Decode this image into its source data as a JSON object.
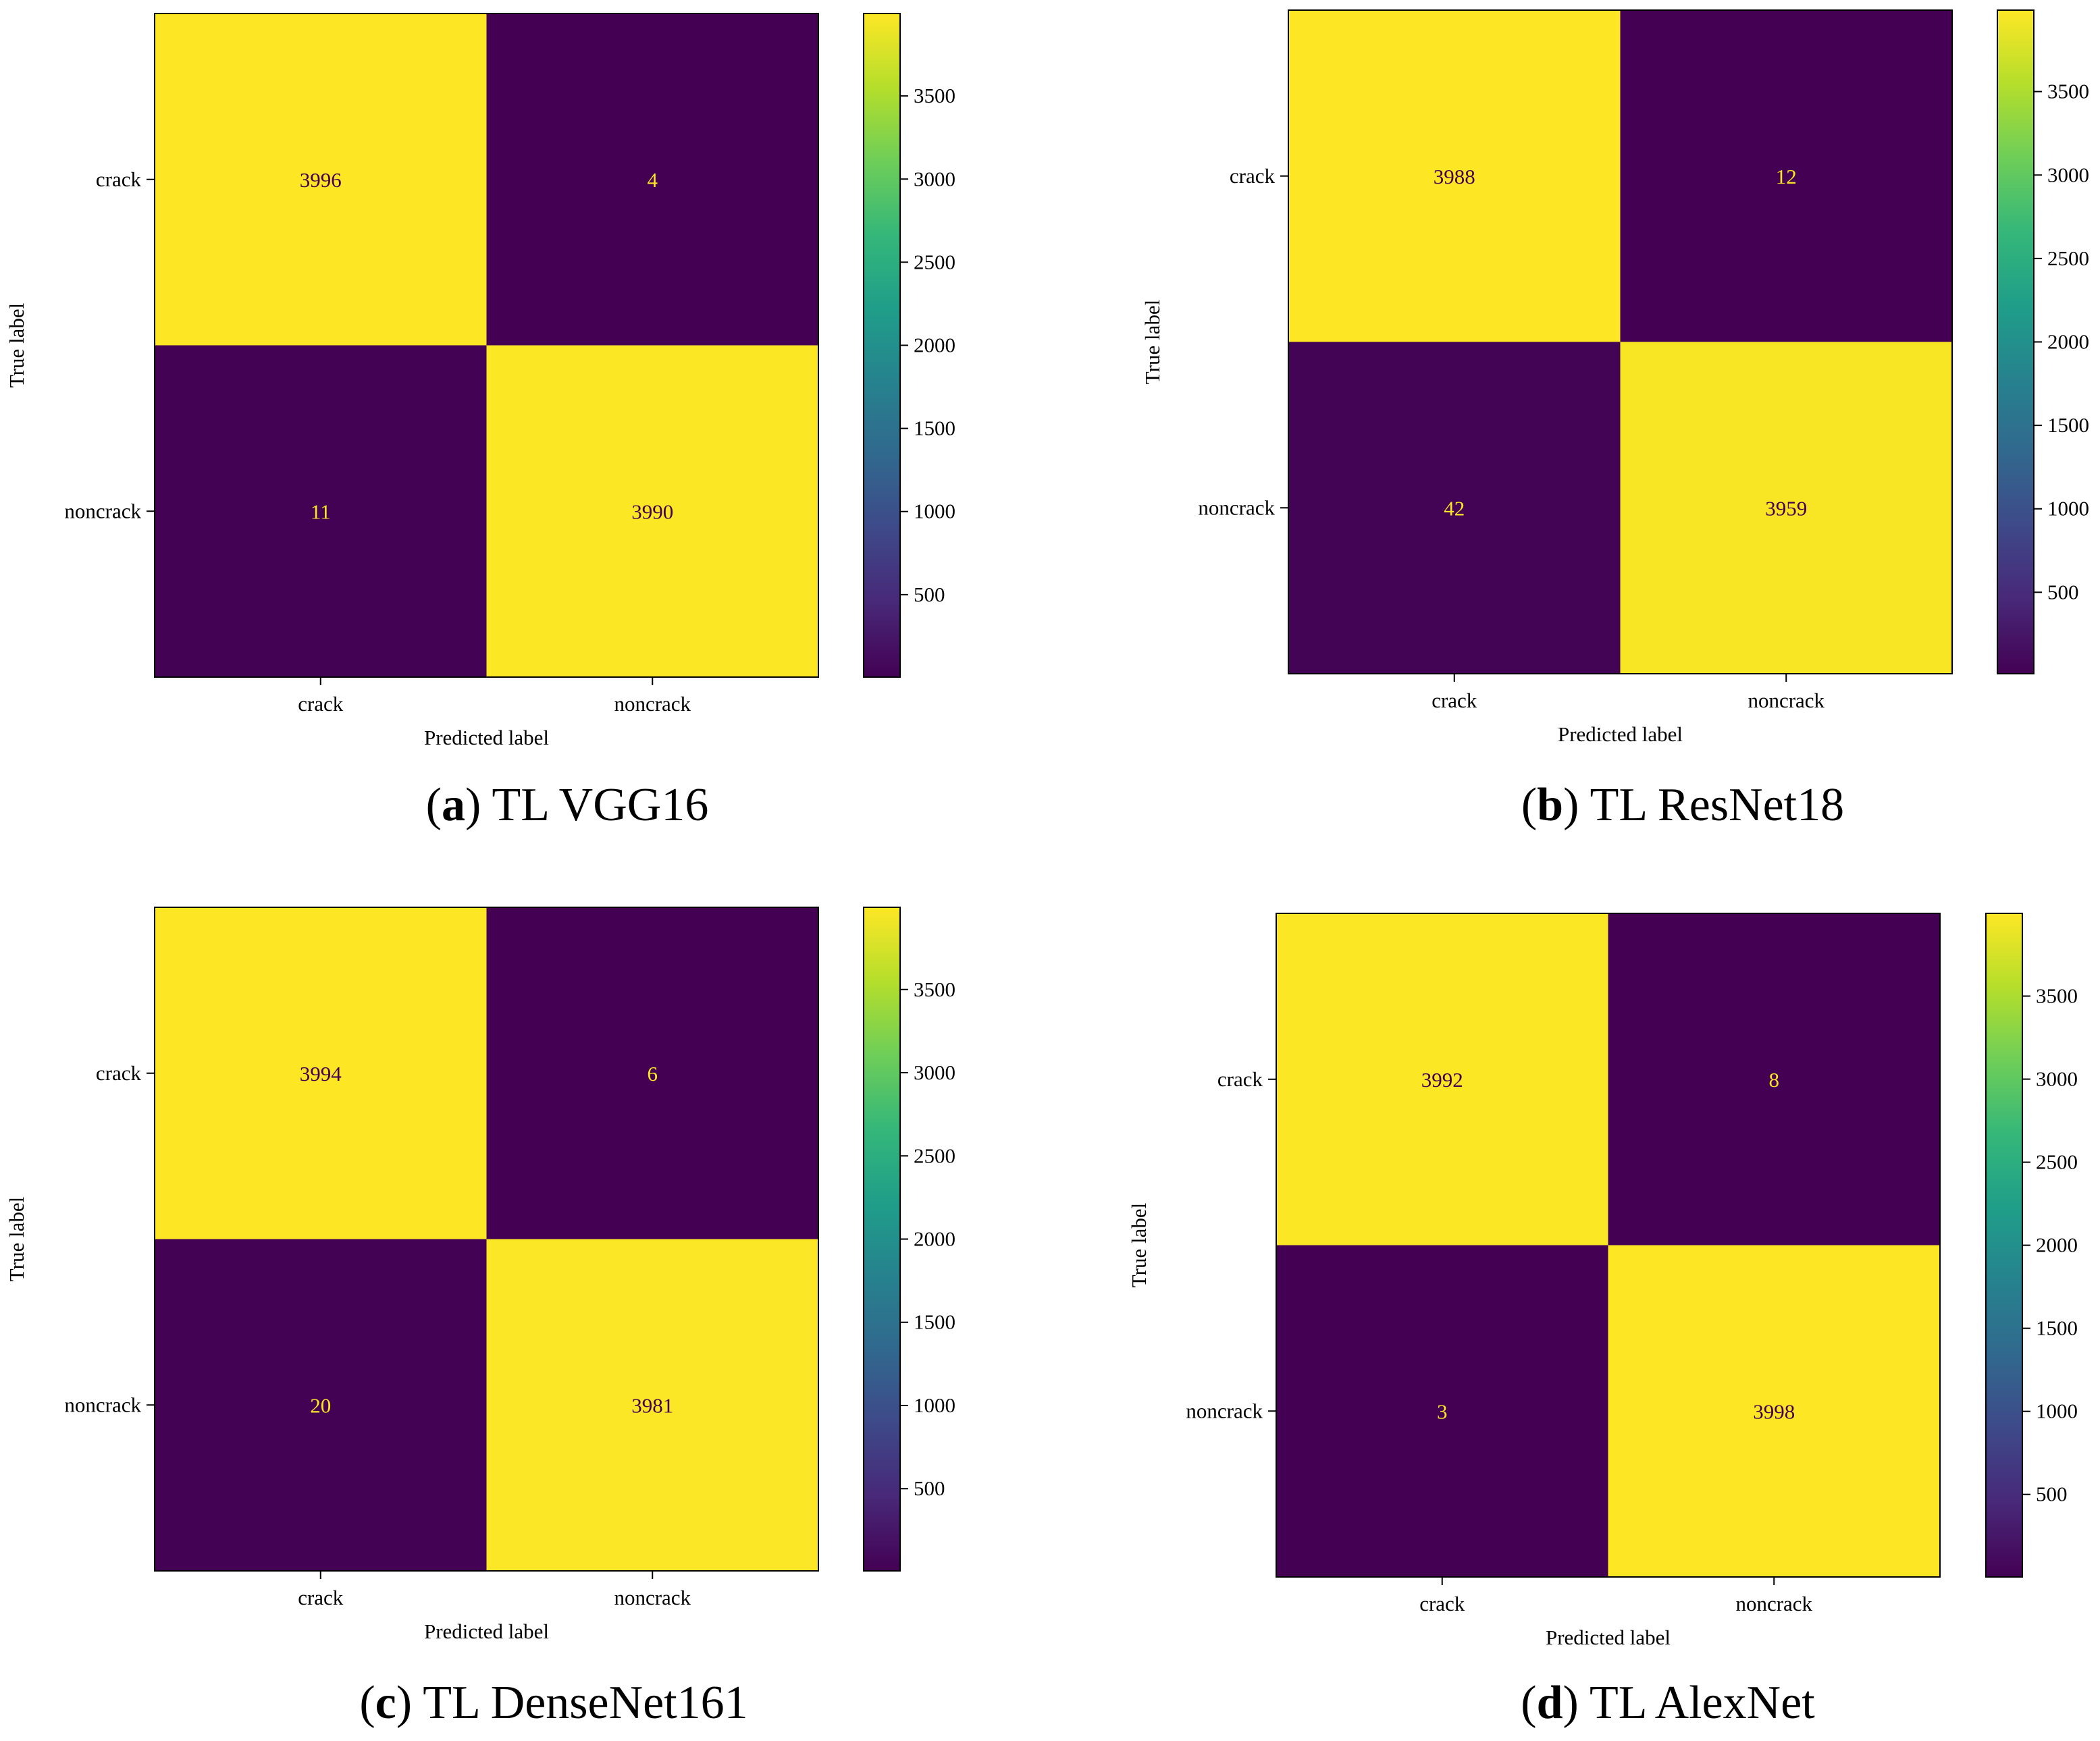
{
  "colormap": {
    "name": "viridis",
    "stops": [
      "#440154",
      "#482878",
      "#3e4989",
      "#31688e",
      "#26828e",
      "#1f9e89",
      "#35b779",
      "#6ece58",
      "#b5de2b",
      "#fde725"
    ],
    "high_text_color": "#440154",
    "low_text_color": "#fde725"
  },
  "chart_data": [
    {
      "type": "heatmap",
      "panel_letter": "a",
      "caption_open": "(",
      "caption_close": ")",
      "caption_text": " TL VGG16",
      "xlabel": "Predicted label",
      "ylabel": "True label",
      "x_categories": [
        "crack",
        "noncrack"
      ],
      "y_categories": [
        "crack",
        "noncrack"
      ],
      "values": [
        [
          3996,
          4
        ],
        [
          11,
          3990
        ]
      ],
      "colorbar_range": [
        4,
        3996
      ],
      "colorbar_ticks": [
        500,
        1000,
        1500,
        2000,
        2500,
        3000,
        3500
      ],
      "colorbar_tick_labels": [
        "500",
        "1000",
        "1500",
        "2000",
        "2500",
        "3000",
        "3500"
      ]
    },
    {
      "type": "heatmap",
      "panel_letter": "b",
      "caption_open": "(",
      "caption_close": ")",
      "caption_text": " TL ResNet18",
      "xlabel": "Predicted label",
      "ylabel": "True label",
      "x_categories": [
        "crack",
        "noncrack"
      ],
      "y_categories": [
        "crack",
        "noncrack"
      ],
      "values": [
        [
          3988,
          12
        ],
        [
          42,
          3959
        ]
      ],
      "colorbar_range": [
        12,
        3988
      ],
      "colorbar_ticks": [
        500,
        1000,
        1500,
        2000,
        2500,
        3000,
        3500
      ],
      "colorbar_tick_labels": [
        "500",
        "1000",
        "1500",
        "2000",
        "2500",
        "3000",
        "3500"
      ]
    },
    {
      "type": "heatmap",
      "panel_letter": "c",
      "caption_open": "(",
      "caption_close": ")",
      "caption_text": " TL DenseNet161",
      "xlabel": "Predicted label",
      "ylabel": "True label",
      "x_categories": [
        "crack",
        "noncrack"
      ],
      "y_categories": [
        "crack",
        "noncrack"
      ],
      "values": [
        [
          3994,
          6
        ],
        [
          20,
          3981
        ]
      ],
      "colorbar_range": [
        6,
        3994
      ],
      "colorbar_ticks": [
        500,
        1000,
        1500,
        2000,
        2500,
        3000,
        3500
      ],
      "colorbar_tick_labels": [
        "500",
        "1000",
        "1500",
        "2000",
        "2500",
        "3000",
        "3500"
      ]
    },
    {
      "type": "heatmap",
      "panel_letter": "d",
      "caption_open": "(",
      "caption_close": ")",
      "caption_text": " TL AlexNet",
      "xlabel": "Predicted label",
      "ylabel": "True label",
      "x_categories": [
        "crack",
        "noncrack"
      ],
      "y_categories": [
        "crack",
        "noncrack"
      ],
      "values": [
        [
          3992,
          8
        ],
        [
          3,
          3998
        ]
      ],
      "colorbar_range": [
        3,
        3998
      ],
      "colorbar_ticks": [
        500,
        1000,
        1500,
        2000,
        2500,
        3000,
        3500
      ],
      "colorbar_tick_labels": [
        "500",
        "1000",
        "1500",
        "2000",
        "2500",
        "3000",
        "3500"
      ]
    }
  ]
}
